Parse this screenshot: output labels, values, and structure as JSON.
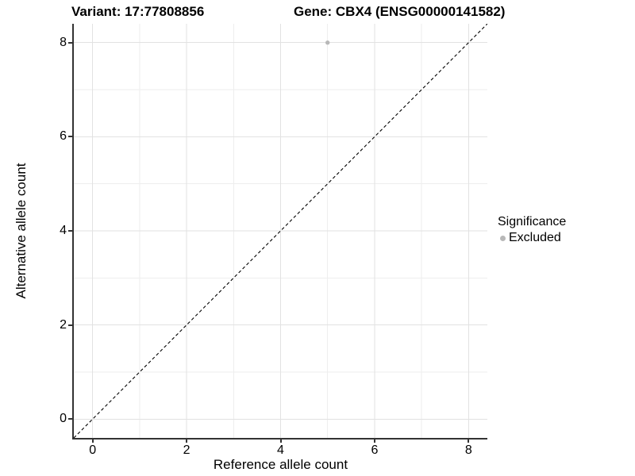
{
  "chart_data": {
    "type": "scatter",
    "title_left": "Variant: 17:77808856",
    "title_right": "Gene: CBX4 (ENSG00000141582)",
    "xlabel": "Reference allele count",
    "ylabel": "Alternative allele count",
    "xlim": [
      -0.4,
      8.4
    ],
    "ylim": [
      -0.4,
      8.4
    ],
    "x_major_ticks": [
      0,
      2,
      4,
      6,
      8
    ],
    "y_major_ticks": [
      0,
      2,
      4,
      6,
      8
    ],
    "x_minor_gridlines": [
      1,
      3,
      5,
      7
    ],
    "y_minor_gridlines": [
      1,
      3,
      5,
      7
    ],
    "grid": true,
    "points": [
      {
        "x": 5,
        "y": 8,
        "series": "Excluded"
      }
    ],
    "reference_line": {
      "type": "identity",
      "slope": 1,
      "intercept": 0,
      "style": "dashed"
    },
    "legend": {
      "title": "Significance",
      "position": "right",
      "items": [
        {
          "label": "Excluded",
          "color": "#b8b8b8"
        }
      ]
    },
    "colors": {
      "point": "#b8b8b8",
      "major_grid": "#e2e2e2",
      "minor_grid": "#eeeeee",
      "axis_line": "#333333",
      "reference_line": "#000000",
      "text": "#000000",
      "background": "#ffffff"
    }
  }
}
